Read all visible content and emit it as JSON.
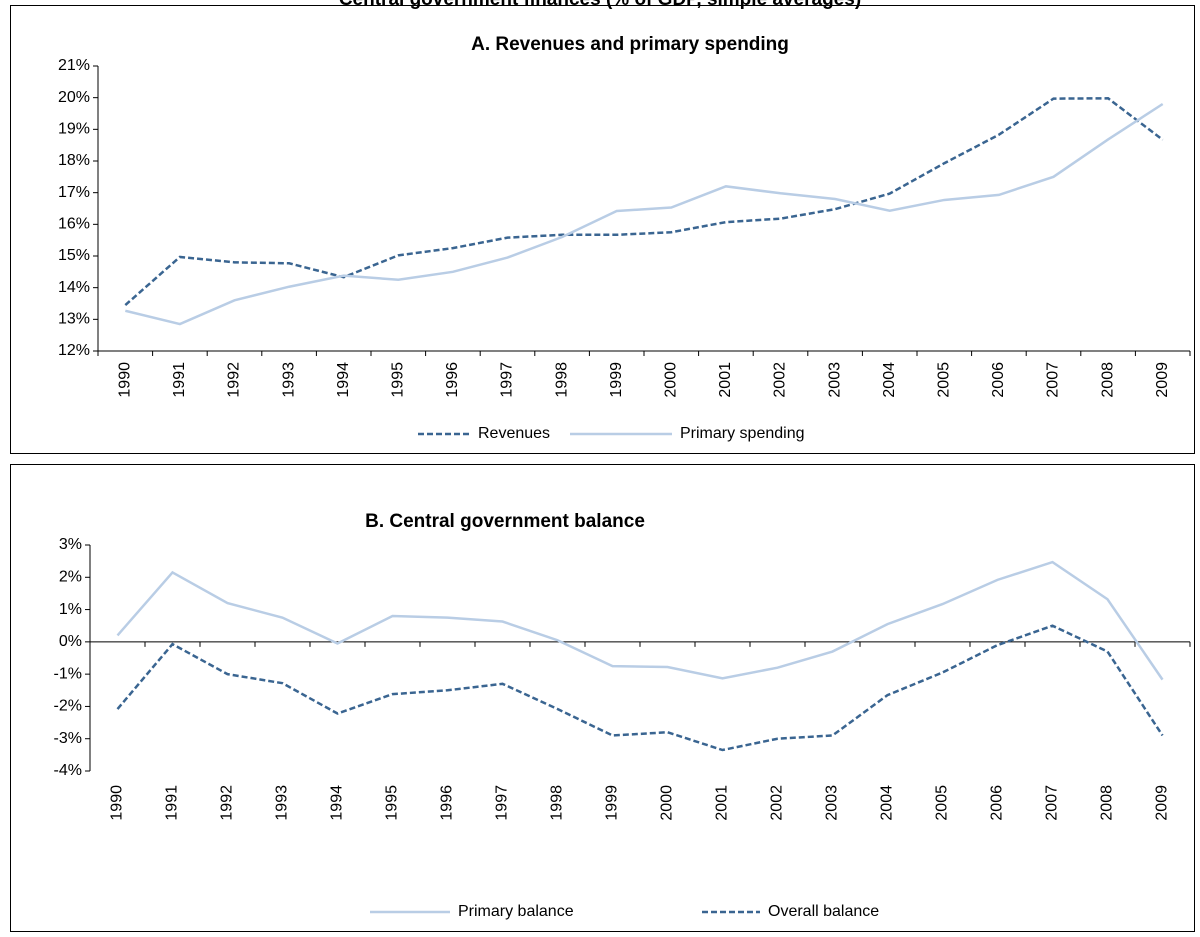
{
  "title": "Central government finances (% of GDP, simple averages)",
  "chart_data": [
    {
      "type": "line",
      "title": "A. Revenues and primary spending",
      "categories": [
        "1990",
        "1991",
        "1992",
        "1993",
        "1994",
        "1995",
        "1996",
        "1997",
        "1998",
        "1999",
        "2000",
        "2001",
        "2002",
        "2003",
        "2004",
        "2005",
        "2006",
        "2007",
        "2008",
        "2009"
      ],
      "series": [
        {
          "name": "Revenues",
          "color": "#3a6591",
          "dashed": true,
          "values": [
            13.45,
            14.97,
            14.8,
            14.77,
            14.33,
            15.02,
            15.25,
            15.58,
            15.67,
            15.67,
            15.75,
            16.07,
            16.18,
            16.48,
            16.97,
            17.93,
            18.83,
            19.97,
            19.98,
            18.67
          ]
        },
        {
          "name": "Primary spending",
          "color": "#b9cde5",
          "dashed": false,
          "values": [
            13.27,
            12.85,
            13.6,
            14.03,
            14.38,
            14.25,
            14.5,
            14.95,
            15.6,
            16.42,
            16.53,
            17.2,
            16.98,
            16.8,
            16.43,
            16.77,
            16.93,
            17.5,
            18.68,
            19.8
          ]
        }
      ],
      "ylim": [
        12,
        21
      ],
      "yticks": [
        {
          "value": 12,
          "label": "12%"
        },
        {
          "value": 13,
          "label": "13%"
        },
        {
          "value": 14,
          "label": "14%"
        },
        {
          "value": 15,
          "label": "15%"
        },
        {
          "value": 16,
          "label": "16%"
        },
        {
          "value": 17,
          "label": "17%"
        },
        {
          "value": 18,
          "label": "18%"
        },
        {
          "value": 19,
          "label": "19%"
        },
        {
          "value": 20,
          "label": "20%"
        },
        {
          "value": 21,
          "label": "21%"
        }
      ],
      "grid": false,
      "legend": "bottom"
    },
    {
      "type": "line",
      "title": "B. Central government balance",
      "categories": [
        "1990",
        "1991",
        "1992",
        "1993",
        "1994",
        "1995",
        "1996",
        "1997",
        "1998",
        "1999",
        "2000",
        "2001",
        "2002",
        "2003",
        "2004",
        "2005",
        "2006",
        "2007",
        "2008",
        "2009"
      ],
      "series": [
        {
          "name": "Primary balance",
          "color": "#b9cde5",
          "dashed": false,
          "values": [
            0.2,
            2.15,
            1.2,
            0.75,
            -0.05,
            0.8,
            0.75,
            0.63,
            0.05,
            -0.75,
            -0.78,
            -1.13,
            -0.8,
            -0.3,
            0.55,
            1.17,
            1.92,
            2.47,
            1.32,
            -1.17
          ]
        },
        {
          "name": "Overall balance",
          "color": "#3a6591",
          "dashed": true,
          "values": [
            -2.08,
            -0.07,
            -1.0,
            -1.28,
            -2.22,
            -1.62,
            -1.5,
            -1.3,
            -2.08,
            -2.9,
            -2.8,
            -3.35,
            -3.0,
            -2.9,
            -1.65,
            -0.95,
            -0.1,
            0.5,
            -0.3,
            -2.9
          ]
        }
      ],
      "ylim": [
        -4,
        3
      ],
      "yticks": [
        {
          "value": -4,
          "label": "-4%"
        },
        {
          "value": -3,
          "label": "-3%"
        },
        {
          "value": -2,
          "label": "-2%"
        },
        {
          "value": -1,
          "label": "-1%"
        },
        {
          "value": 0,
          "label": "0%"
        },
        {
          "value": 1,
          "label": "1%"
        },
        {
          "value": 2,
          "label": "2%"
        },
        {
          "value": 3,
          "label": "3%"
        }
      ],
      "grid": false,
      "legend": "bottom"
    }
  ]
}
